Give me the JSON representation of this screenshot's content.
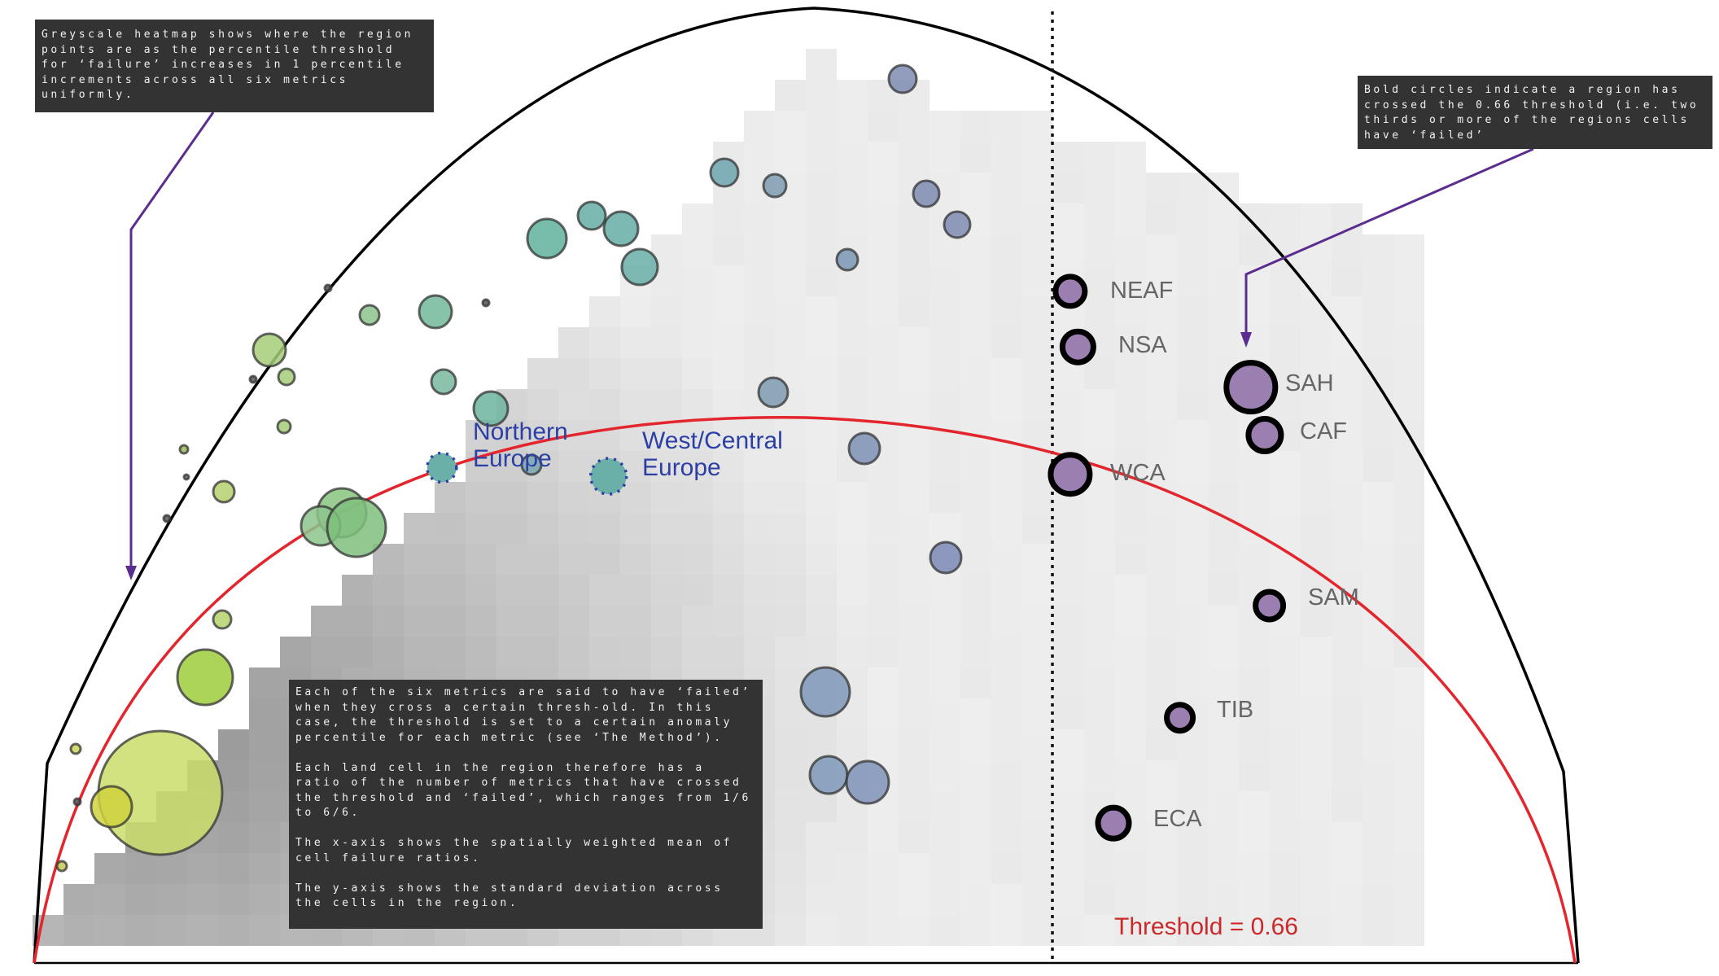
{
  "chart_data": {
    "type": "scatter",
    "title": "",
    "xlabel": "",
    "ylabel": "",
    "threshold": 0.66,
    "threshold_label": "Threshold = 0.66",
    "annotations": {
      "heatmap_note": "Greyscale heatmap shows where the region points are as the percentile threshold for ‘failure’ increases in 1 percentile increments across all six metrics uniformly.",
      "bold_note": "Bold circles indicate a region has crossed the 0.66 threshold (i.e. two thirds or more of the regions cells have ‘failed’",
      "method_note": "Each of the six metrics are said to have ‘failed’ when they cross a certain thresh-old. In this case, the threshold is set to a certain anomaly percentile for each metric (see ‘The Method’).\n\nEach land cell in the region therefore has a ratio of the number of metrics that have crossed the threshold and ‘failed’, which ranges from 1/6 to 6/6.\n\nThe x-axis shows the spatially weighted mean of cell failure ratios.\n\nThe y-axis shows the standard deviation across the cells in the region."
    },
    "highlighted_regions": [
      {
        "label": "Northern\nEurope",
        "x": 0.264,
        "y": 0.517
      },
      {
        "label": "West/Central\nEurope",
        "x": 0.372,
        "y": 0.508
      }
    ],
    "crossed_regions": [
      {
        "label": "NEAF",
        "x": 0.671,
        "y": 0.701
      },
      {
        "label": "NSA",
        "x": 0.676,
        "y": 0.643
      },
      {
        "label": "SAH",
        "x": 0.788,
        "y": 0.601
      },
      {
        "label": "CAF",
        "x": 0.797,
        "y": 0.551
      },
      {
        "label": "WCA",
        "x": 0.671,
        "y": 0.51
      },
      {
        "label": "SAM",
        "x": 0.8,
        "y": 0.373
      },
      {
        "label": "TIB",
        "x": 0.742,
        "y": 0.256
      },
      {
        "label": "ECA",
        "x": 0.699,
        "y": 0.146
      }
    ],
    "colors": {
      "outer_arc": "#000000",
      "threshold_arc": "#e3262d",
      "threshold_line": "#000000",
      "bold_circle_fill": "#9a7fb0",
      "highlight_label": "#2b3fa5",
      "annotation_box": "#333333",
      "arrow": "#5b2d8e"
    }
  }
}
